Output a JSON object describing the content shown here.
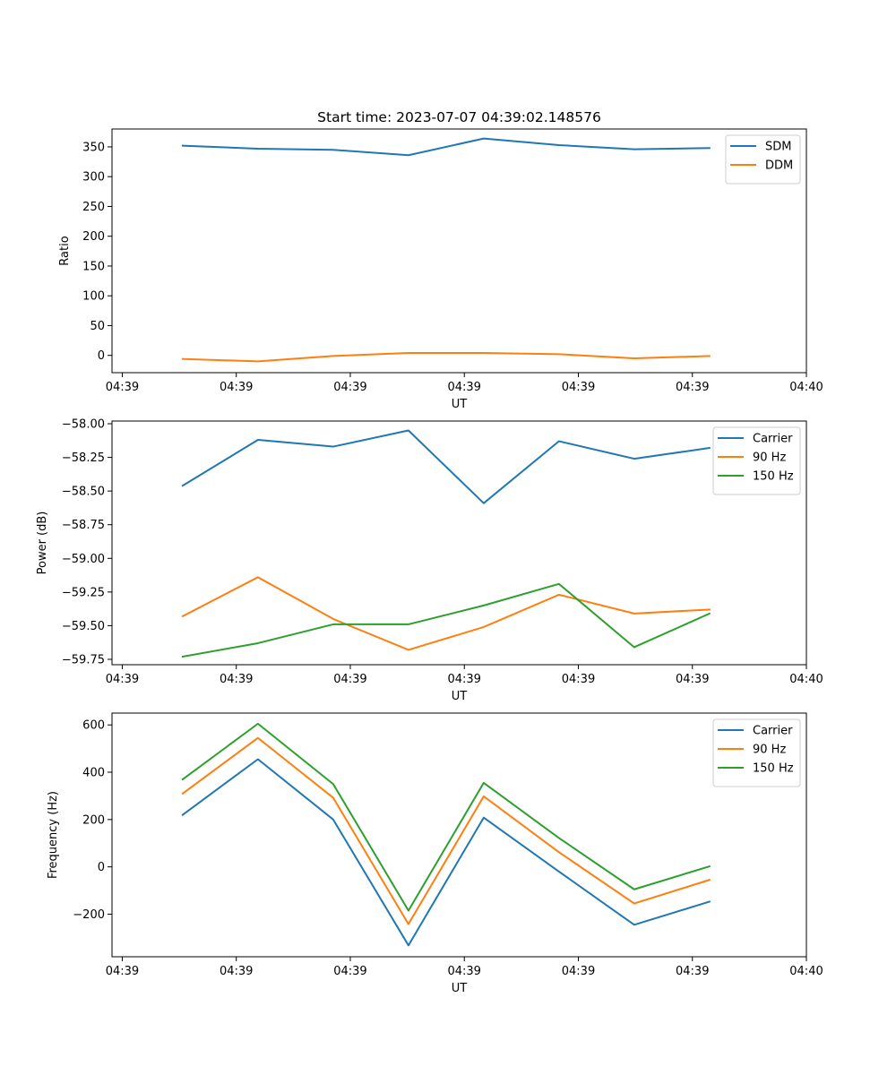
{
  "title": "Start time: 2023-07-07 04:39:02.148576",
  "chart_data": [
    {
      "type": "line",
      "ylabel": "Ratio",
      "xlabel": "UT",
      "x_tick_labels": [
        "04:39",
        "04:39",
        "04:39",
        "04:39",
        "04:39",
        "04:39",
        "04:40"
      ],
      "x_tick_positions": [
        0,
        1,
        2,
        3,
        4,
        5,
        6
      ],
      "xlim": [
        -0.09,
        6.0
      ],
      "ylim": [
        -29,
        380
      ],
      "y_ticks": [
        0,
        50,
        100,
        150,
        200,
        250,
        300,
        350
      ],
      "y_tick_labels": [
        "0",
        "50",
        "100",
        "150",
        "200",
        "250",
        "300",
        "350"
      ],
      "x": [
        0.53,
        1.19,
        1.85,
        2.51,
        3.17,
        3.83,
        4.49,
        5.15
      ],
      "series": [
        {
          "name": "SDM",
          "color": "#1f77b4",
          "values": [
            352,
            347,
            345,
            336,
            364,
            353,
            346,
            348
          ]
        },
        {
          "name": "DDM",
          "color": "#ff7f0e",
          "values": [
            -6,
            -10,
            -1,
            4,
            4,
            2,
            -5,
            -1
          ]
        }
      ],
      "legend": "top-right"
    },
    {
      "type": "line",
      "ylabel": "Power (dB)",
      "xlabel": "UT",
      "x_tick_labels": [
        "04:39",
        "04:39",
        "04:39",
        "04:39",
        "04:39",
        "04:39",
        "04:40"
      ],
      "x_tick_positions": [
        0,
        1,
        2,
        3,
        4,
        5,
        6
      ],
      "xlim": [
        -0.09,
        6.0
      ],
      "ylim": [
        -59.79,
        -57.98
      ],
      "y_ticks": [
        -58.0,
        -58.25,
        -58.5,
        -58.75,
        -59.0,
        -59.25,
        -59.5,
        -59.75
      ],
      "y_tick_labels": [
        "−58.00",
        "−58.25",
        "−58.50",
        "−58.75",
        "−59.00",
        "−59.25",
        "−59.50",
        "−59.75"
      ],
      "x": [
        0.53,
        1.19,
        1.85,
        2.51,
        3.17,
        3.83,
        4.49,
        5.15
      ],
      "series": [
        {
          "name": "Carrier",
          "color": "#1f77b4",
          "values": [
            -58.46,
            -58.12,
            -58.17,
            -58.05,
            -58.59,
            -58.13,
            -58.26,
            -58.18
          ]
        },
        {
          "name": "90 Hz",
          "color": "#ff7f0e",
          "values": [
            -59.43,
            -59.14,
            -59.45,
            -59.68,
            -59.51,
            -59.27,
            -59.41,
            -59.38
          ]
        },
        {
          "name": "150 Hz",
          "color": "#2ca02c",
          "values": [
            -59.73,
            -59.63,
            -59.49,
            -59.49,
            -59.35,
            -59.19,
            -59.66,
            -59.41
          ]
        }
      ],
      "legend": "top-right"
    },
    {
      "type": "line",
      "ylabel": "Frequency (Hz)",
      "xlabel": "UT",
      "x_tick_labels": [
        "04:39",
        "04:39",
        "04:39",
        "04:39",
        "04:39",
        "04:39",
        "04:40"
      ],
      "x_tick_positions": [
        0,
        1,
        2,
        3,
        4,
        5,
        6
      ],
      "xlim": [
        -0.09,
        6.0
      ],
      "ylim": [
        -380,
        650
      ],
      "y_ticks": [
        -200,
        0,
        200,
        400,
        600
      ],
      "y_tick_labels": [
        "−200",
        "0",
        "200",
        "400",
        "600"
      ],
      "x": [
        0.53,
        1.19,
        1.85,
        2.51,
        3.17,
        3.83,
        4.49,
        5.15
      ],
      "series": [
        {
          "name": "Carrier",
          "color": "#1f77b4",
          "values": [
            220,
            455,
            200,
            -332,
            208,
            -20,
            -245,
            -147
          ]
        },
        {
          "name": "90 Hz",
          "color": "#ff7f0e",
          "values": [
            310,
            545,
            292,
            -242,
            298,
            62,
            -155,
            -55
          ]
        },
        {
          "name": "150 Hz",
          "color": "#2ca02c",
          "values": [
            370,
            605,
            350,
            -185,
            355,
            122,
            -95,
            2
          ]
        }
      ],
      "legend": "top-right"
    }
  ]
}
